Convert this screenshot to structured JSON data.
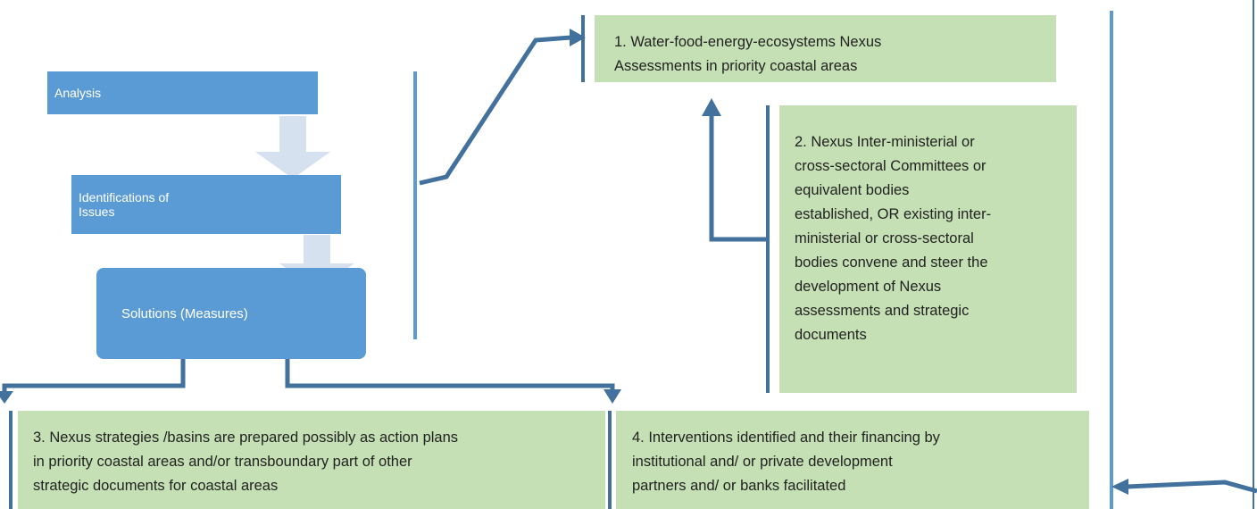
{
  "steps": [
    {
      "lines": [
        "Analysis"
      ]
    },
    {
      "lines": [
        "Identifications of",
        "Issues"
      ]
    },
    {
      "lines": [
        "Solutions (Measures)"
      ]
    }
  ],
  "outcomes": [
    {
      "lines": [
        "1. Water-food-energy-ecosystems Nexus",
        "Assessments in priority coastal areas"
      ]
    },
    {
      "lines": [
        "2. Nexus Inter-ministerial or",
        "cross-sectoral Committees or",
        "equivalent bodies",
        "established, OR existing inter-",
        "ministerial or cross-sectoral",
        "bodies convene and steer the",
        "development of Nexus",
        "assessments and strategic",
        "documents"
      ]
    },
    {
      "lines": [
        "3. Nexus strategies /basins are prepared possibly as action plans",
        "in priority coastal areas and/or transboundary  part of other",
        "strategic documents for coastal areas"
      ]
    },
    {
      "lines": [
        "4. Interventions identified and their financing by",
        "institutional and/ or private development",
        "partners and/ or banks facilitated"
      ]
    }
  ]
}
